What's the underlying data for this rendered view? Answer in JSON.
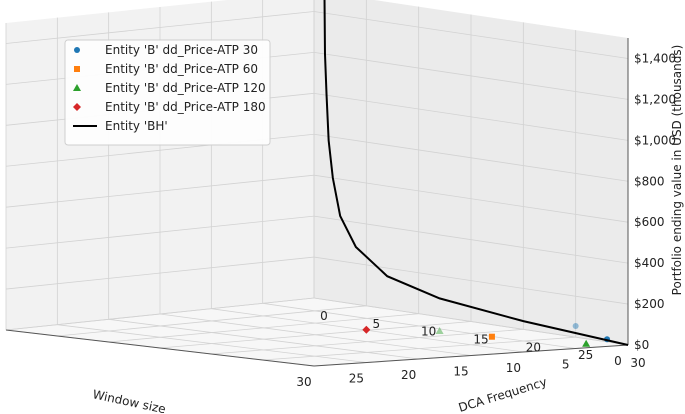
{
  "chart_data": {
    "type": "scatter",
    "projection": "3d",
    "xlabel": "Window size",
    "ylabel": "DCA Frequency",
    "zlabel": "Portfolio ending value in USD (thousands)",
    "x_ticks": [
      "30",
      "25",
      "20",
      "15",
      "10",
      "5",
      "0"
    ],
    "y_ticks": [
      "30",
      "25",
      "20",
      "15",
      "10",
      "5",
      "0"
    ],
    "z_ticks": [
      "$0",
      "$200",
      "$400",
      "$600",
      "$800",
      "$1,000",
      "$1,200",
      "$1,400"
    ],
    "grid": true,
    "legend_position": "top-left",
    "series": [
      {
        "name": "Entity 'B' dd_Price-ATP 30",
        "marker": "circle",
        "color": "#1f77b4",
        "points": [
          {
            "window": 2,
            "dca": 30,
            "value": 35
          },
          {
            "window": 5,
            "dca": 30,
            "value": 110
          }
        ]
      },
      {
        "name": "Entity 'B' dd_Price-ATP 60",
        "marker": "square",
        "color": "#ff7f0e",
        "points": [
          {
            "window": 13,
            "dca": 30,
            "value": 85
          }
        ]
      },
      {
        "name": "Entity 'B' dd_Price-ATP 120",
        "marker": "triangle",
        "color": "#2ca02c",
        "points": [
          {
            "window": 4,
            "dca": 30,
            "value": 20
          },
          {
            "window": 18,
            "dca": 30,
            "value": 130
          }
        ]
      },
      {
        "name": "Entity 'B' dd_Price-ATP 180",
        "marker": "diamond",
        "color": "#d62728",
        "points": [
          {
            "window": 25,
            "dca": 30,
            "value": 160
          }
        ]
      },
      {
        "name": "Entity 'BH'",
        "marker": "line",
        "color": "#000000",
        "points": [
          {
            "window": 0,
            "dca": 30,
            "value": 0
          },
          {
            "window": 0,
            "dca": 20,
            "value": 40
          },
          {
            "window": 0,
            "dca": 12,
            "value": 90
          },
          {
            "window": 0,
            "dca": 7,
            "value": 160
          },
          {
            "window": 0,
            "dca": 4,
            "value": 280
          },
          {
            "window": 0,
            "dca": 2.5,
            "value": 420
          },
          {
            "window": 0,
            "dca": 1.8,
            "value": 600
          },
          {
            "window": 0,
            "dca": 1.4,
            "value": 780
          },
          {
            "window": 0,
            "dca": 1.2,
            "value": 1000
          },
          {
            "window": 0,
            "dca": 1.05,
            "value": 1200
          },
          {
            "window": 0,
            "dca": 1,
            "value": 1500
          }
        ]
      }
    ]
  }
}
